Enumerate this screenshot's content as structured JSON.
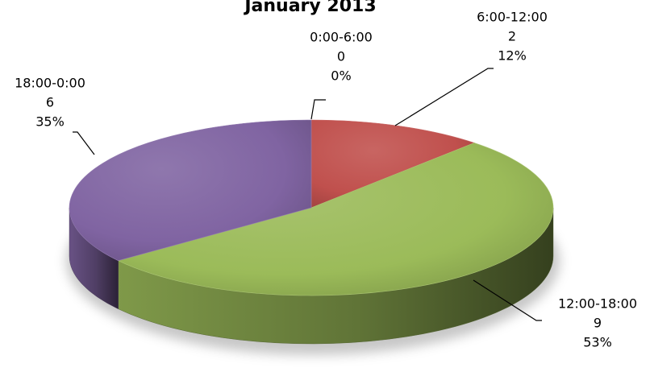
{
  "chart_data": {
    "type": "pie",
    "title": "January 2013",
    "categories": [
      "0:00-6:00",
      "6:00-12:00",
      "12:00-18:00",
      "18:00-0:00"
    ],
    "values": [
      0,
      2,
      9,
      6
    ],
    "percent_labels": [
      "0%",
      "12%",
      "53%",
      "35%"
    ],
    "colors": [
      "#4f81bd",
      "#c0504d",
      "#9bbb59",
      "#8064a2"
    ],
    "style": "3d",
    "legend": "none",
    "data_labels": "category, value, percent"
  }
}
